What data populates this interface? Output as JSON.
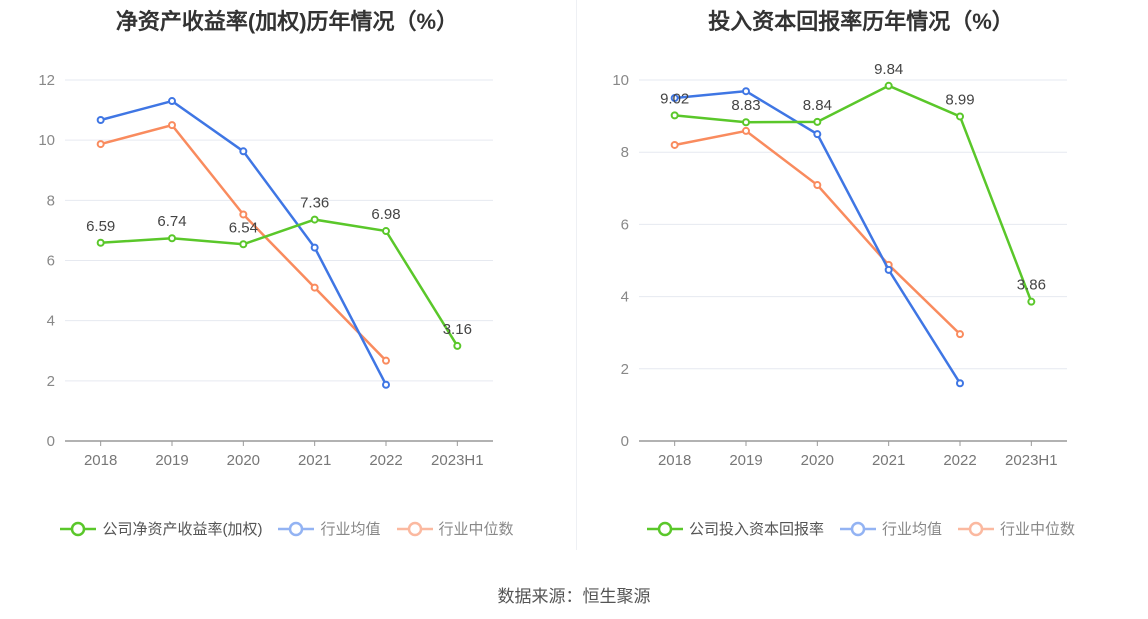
{
  "source": "数据来源：恒生聚源",
  "colors": {
    "company": "#5ac72a",
    "avg": "#3f76e4",
    "median": "#f98b5e",
    "avg_legend": "#93b3f3",
    "median_legend": "#fbb9a0"
  },
  "chart_data": [
    {
      "type": "line",
      "title": "净资产收益率(加权)历年情况（%）",
      "categories": [
        "2018",
        "2019",
        "2020",
        "2021",
        "2022",
        "2023H1"
      ],
      "ylim": [
        0,
        12
      ],
      "yticks": [
        0,
        2,
        4,
        6,
        8,
        10,
        12
      ],
      "grid": true,
      "legend_position": "bottom",
      "series": [
        {
          "name": "公司净资产收益率(加权)",
          "key": "company",
          "values": [
            6.59,
            6.74,
            6.54,
            7.36,
            6.98,
            3.16
          ],
          "labels": true
        },
        {
          "name": "行业均值",
          "key": "avg",
          "values": [
            10.67,
            11.3,
            9.63,
            6.43,
            1.87,
            null
          ],
          "labels": false
        },
        {
          "name": "行业中位数",
          "key": "median",
          "values": [
            9.87,
            10.5,
            7.53,
            5.1,
            2.67,
            null
          ],
          "labels": false
        }
      ]
    },
    {
      "type": "line",
      "title": "投入资本回报率历年情况（%）",
      "categories": [
        "2018",
        "2019",
        "2020",
        "2021",
        "2022",
        "2023H1"
      ],
      "ylim": [
        0,
        10
      ],
      "yticks": [
        0,
        2,
        4,
        6,
        8,
        10
      ],
      "grid": true,
      "legend_position": "bottom",
      "series": [
        {
          "name": "公司投入资本回报率",
          "key": "company",
          "values": [
            9.02,
            8.83,
            8.84,
            9.84,
            8.99,
            3.86
          ],
          "labels": true
        },
        {
          "name": "行业均值",
          "key": "avg",
          "values": [
            9.5,
            9.69,
            8.5,
            4.74,
            1.6,
            null
          ],
          "labels": false
        },
        {
          "name": "行业中位数",
          "key": "median",
          "values": [
            8.2,
            8.59,
            7.09,
            4.88,
            2.96,
            null
          ],
          "labels": false
        }
      ]
    }
  ]
}
